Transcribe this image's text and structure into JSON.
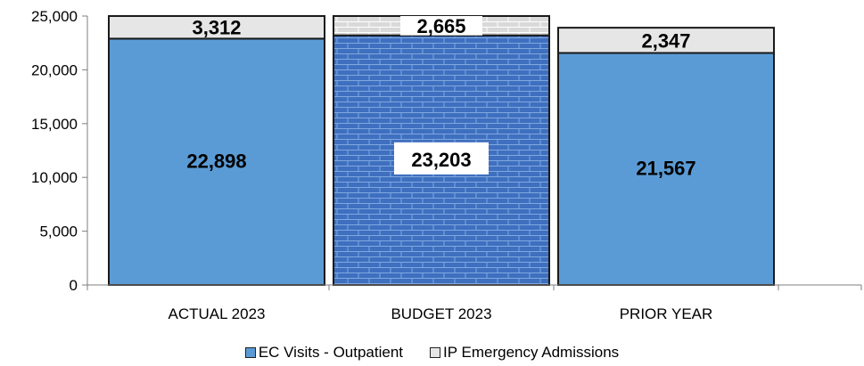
{
  "chart_data": {
    "type": "bar",
    "stacked": true,
    "categories": [
      "ACTUAL 2023",
      "BUDGET 2023",
      "PRIOR YEAR"
    ],
    "series": [
      {
        "name": "EC Visits - Outpatient",
        "values": [
          22898,
          23203,
          21567
        ],
        "color": "#5b9bd5"
      },
      {
        "name": "IP Emergency Admissions",
        "values": [
          3312,
          2665,
          2347
        ],
        "color": "#e6e6e6"
      }
    ],
    "data_labels": [
      [
        "22,898",
        "23,203",
        "21,567"
      ],
      [
        "3,312",
        "2,665",
        "2,347"
      ]
    ],
    "patterned_category": "BUDGET 2023",
    "ylim": [
      0,
      25000
    ],
    "yticks": [
      0,
      5000,
      10000,
      15000,
      20000,
      25000
    ],
    "ytick_labels": [
      "0",
      "5,000",
      "10,000",
      "15,000",
      "20,000",
      "25,000"
    ],
    "grid": false,
    "legend_position": "bottom",
    "title": "",
    "xlabel": "",
    "ylabel": ""
  }
}
